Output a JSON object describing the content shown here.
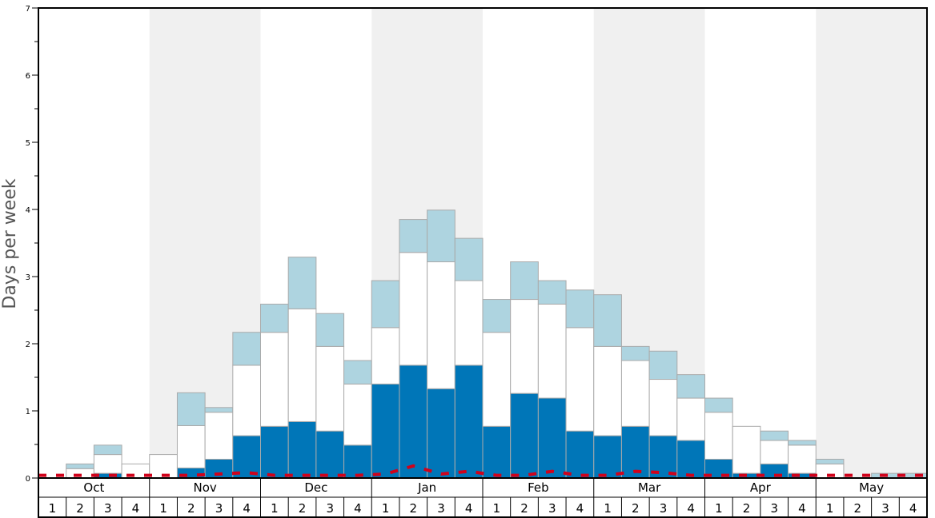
{
  "chart_data": {
    "type": "bar",
    "stacked": true,
    "ylabel": "Days per week",
    "ylim": [
      0,
      7
    ],
    "yticks": [
      "0",
      "1",
      "2",
      "3",
      "4",
      "5",
      "6",
      "7"
    ],
    "months": [
      "Oct",
      "Nov",
      "Dec",
      "Jan",
      "Feb",
      "Mar",
      "Apr",
      "May"
    ],
    "week_labels": [
      "1",
      "2",
      "3",
      "4"
    ],
    "band_shading": [
      false,
      true,
      false,
      true,
      false,
      true,
      false,
      true
    ],
    "colors": {
      "dark": "#0076b8",
      "white": "#ffffff",
      "light": "#aed4e0",
      "band": "#f0f0f0",
      "line": "#d0021b",
      "bar_edge": "#aaaaaa"
    },
    "series": [
      {
        "values": [
          0.0,
          0.0,
          0.07,
          0.0,
          0.0,
          0.15,
          0.28,
          0.63,
          0.77,
          0.84,
          0.7,
          0.49,
          1.4,
          1.68,
          1.33,
          1.68,
          0.77,
          1.26,
          1.19,
          0.7,
          0.63,
          0.77,
          0.63,
          0.56,
          0.28,
          0.07,
          0.21,
          0.07,
          0.0,
          0.0,
          0.0,
          0.0
        ]
      },
      {
        "values": [
          0.0,
          0.14,
          0.28,
          0.21,
          0.35,
          0.63,
          0.7,
          1.05,
          1.4,
          1.68,
          1.26,
          0.91,
          0.84,
          1.68,
          1.89,
          1.26,
          1.4,
          1.4,
          1.4,
          1.54,
          1.33,
          0.98,
          0.84,
          0.63,
          0.7,
          0.7,
          0.35,
          0.42,
          0.21,
          0.0,
          0.0,
          0.0
        ]
      },
      {
        "values": [
          0.0,
          0.07,
          0.14,
          0.0,
          0.0,
          0.49,
          0.07,
          0.49,
          0.42,
          0.77,
          0.49,
          0.35,
          0.7,
          0.49,
          0.77,
          0.63,
          0.49,
          0.56,
          0.35,
          0.56,
          0.77,
          0.21,
          0.42,
          0.35,
          0.21,
          0.0,
          0.14,
          0.07,
          0.07,
          0.0,
          0.07,
          0.07
        ]
      }
    ],
    "line": {
      "values": [
        0.04,
        0.04,
        0.04,
        0.04,
        0.04,
        0.04,
        0.06,
        0.08,
        0.04,
        0.04,
        0.04,
        0.04,
        0.06,
        0.18,
        0.06,
        0.1,
        0.04,
        0.04,
        0.1,
        0.04,
        0.04,
        0.1,
        0.08,
        0.04,
        0.04,
        0.04,
        0.04,
        0.04,
        0.04,
        0.04,
        0.04,
        0.04
      ]
    }
  }
}
